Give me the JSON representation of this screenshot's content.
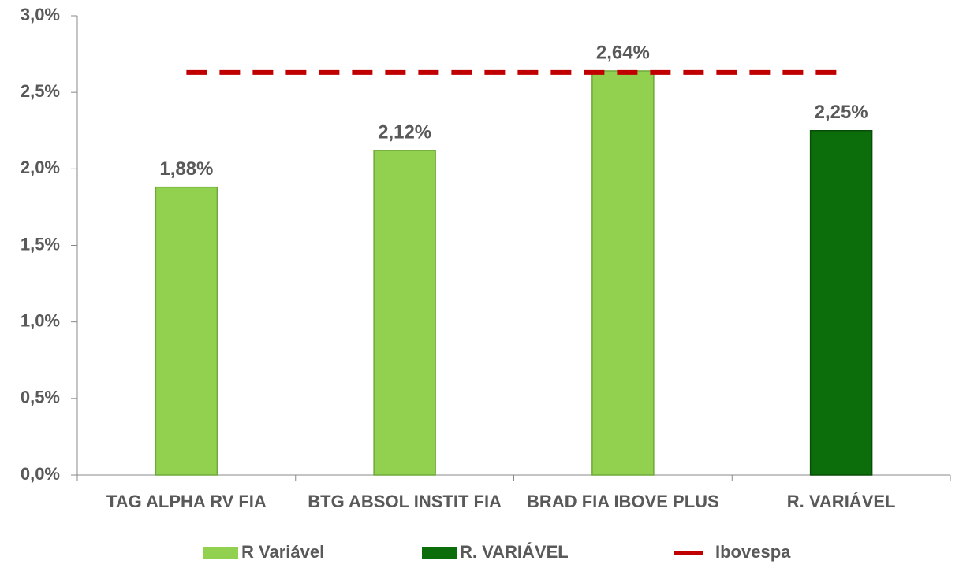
{
  "chart_data": {
    "type": "bar",
    "categories": [
      "TAG ALPHA RV FIA",
      "BTG ABSOL INSTIT FIA",
      "BRAD FIA IBOVE PLUS",
      "R. VARIÁVEL"
    ],
    "series": [
      {
        "name": "R Variável",
        "color": "#92d050",
        "values": [
          1.88,
          2.12,
          2.64,
          null
        ],
        "value_labels": [
          "1,88%",
          "2,12%",
          "2,64%",
          null
        ]
      },
      {
        "name": "R. VARIÁVEL",
        "color": "#0b6e0b",
        "values": [
          null,
          null,
          null,
          2.25
        ],
        "value_labels": [
          null,
          null,
          null,
          "2,25%"
        ]
      },
      {
        "name": "Ibovespa",
        "type": "line",
        "color": "#c00000",
        "values": [
          2.63,
          2.63,
          2.63,
          2.63
        ]
      }
    ],
    "ylim": [
      0,
      3
    ],
    "yticks": [
      {
        "value": 0,
        "label": "0,0%"
      },
      {
        "value": 0.5,
        "label": "0,5%"
      },
      {
        "value": 1,
        "label": "1,0%"
      },
      {
        "value": 1.5,
        "label": "1,5%"
      },
      {
        "value": 2,
        "label": "2,0%"
      },
      {
        "value": 2.5,
        "label": "2,5%"
      },
      {
        "value": 3,
        "label": "3,0%"
      }
    ],
    "grid": false,
    "legend": "bottom"
  }
}
